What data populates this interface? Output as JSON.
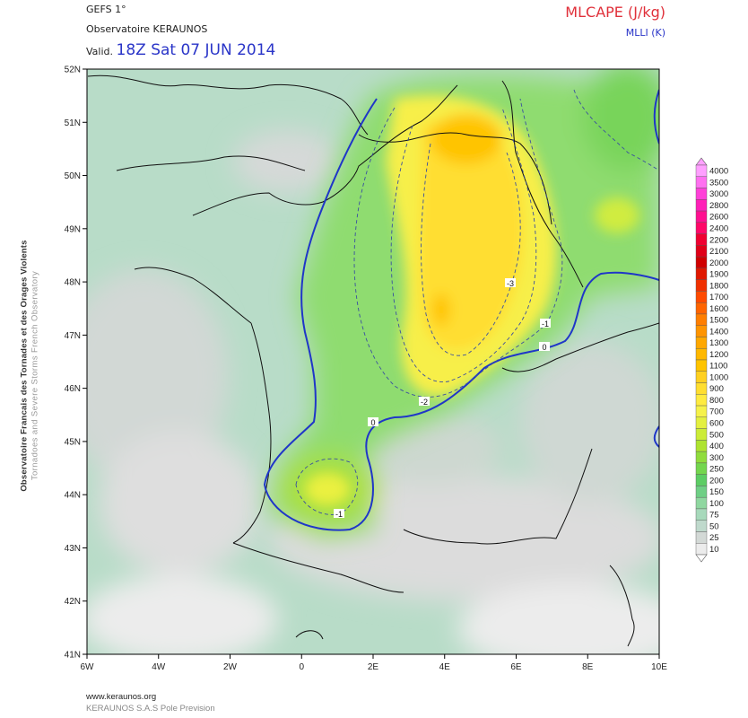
{
  "header": {
    "model": "GEFS 1°",
    "source": "Observatoire KERAUNOS",
    "valid_prefix": "Valid.",
    "valid_time": "18Z Sat 07 JUN 2014",
    "field_main": "MLCAPE (J/kg)",
    "field_contour": "MLLI (K)"
  },
  "side": {
    "line1": "Observatoire Francais des Tornades et des Orages Violents",
    "line2": "Tornadoes and Severe Storms French Observatory"
  },
  "footer": {
    "url": "www.keraunos.org",
    "company": "KERAUNOS S.A.S Pole Prevision"
  },
  "axes": {
    "lon_labels": [
      "6W",
      "4W",
      "2W",
      "0",
      "2E",
      "4E",
      "6E",
      "8E",
      "10E"
    ],
    "lat_labels": [
      "52N",
      "51N",
      "50N",
      "49N",
      "48N",
      "47N",
      "46N",
      "45N",
      "44N",
      "43N",
      "42N",
      "41N"
    ]
  },
  "contour_labels": [
    "-3",
    "-2",
    "-1",
    "-1",
    "0",
    "0"
  ],
  "colorbar": {
    "levels": [
      "4000",
      "3500",
      "3000",
      "2800",
      "2600",
      "2400",
      "2200",
      "2100",
      "2000",
      "1900",
      "1800",
      "1700",
      "1600",
      "1500",
      "1400",
      "1300",
      "1200",
      "1100",
      "1000",
      "900",
      "800",
      "700",
      "600",
      "500",
      "400",
      "300",
      "250",
      "200",
      "150",
      "100",
      "75",
      "50",
      "25",
      "10"
    ],
    "colors": [
      "#ffa0ff",
      "#ff70f0",
      "#ff40d8",
      "#ff20b8",
      "#ff1090",
      "#ff0868",
      "#f00030",
      "#e00018",
      "#d00000",
      "#e01800",
      "#f03000",
      "#ff4a00",
      "#ff6400",
      "#ff7e00",
      "#ff9400",
      "#ffa800",
      "#ffb800",
      "#ffc400",
      "#ffd020",
      "#ffde30",
      "#ffeb40",
      "#f6f24a",
      "#e4f040",
      "#ccec38",
      "#aee330",
      "#90dc3c",
      "#74d64e",
      "#5ccd64",
      "#6fcf85",
      "#8fd7a0",
      "#a7d9bb",
      "#bfd9cc",
      "#d3d9d6",
      "#ececec"
    ]
  }
}
